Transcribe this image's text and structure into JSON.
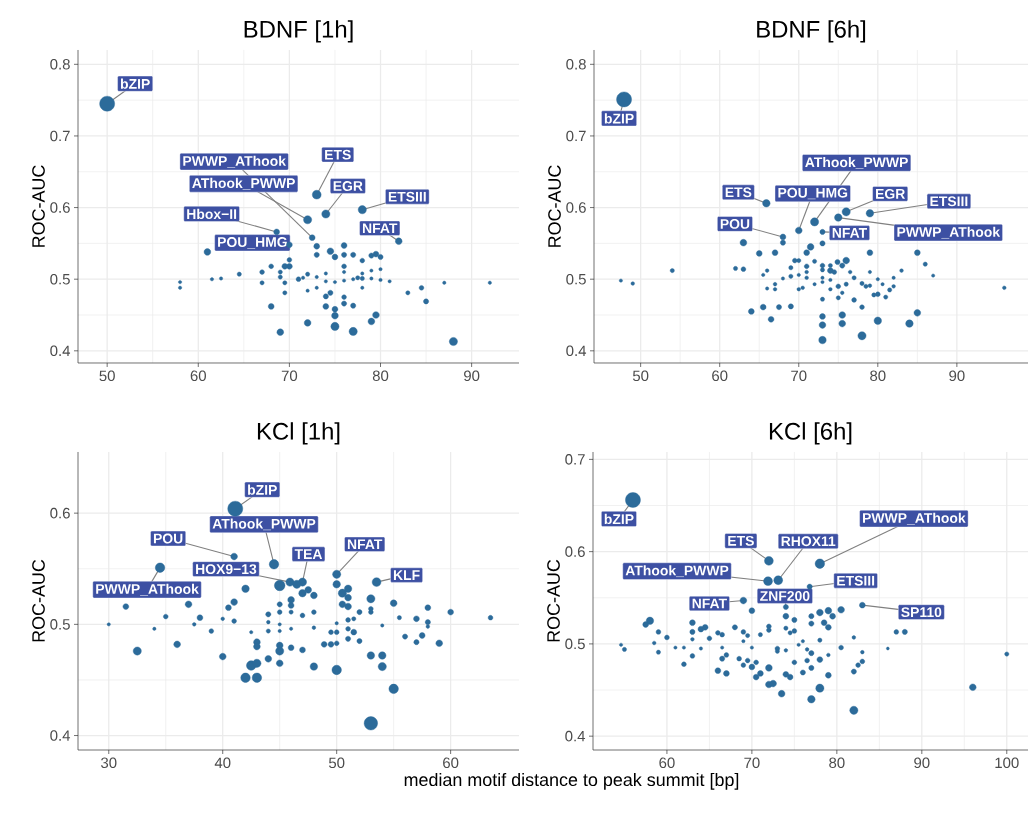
{
  "chart_data": [
    {
      "type": "bubble",
      "title": "BDNF [1h]",
      "ylabel": "ROC-AUC",
      "color": "#2c6b9a",
      "grid": true,
      "xlim": [
        46.8,
        95.2
      ],
      "ylim": [
        0.383,
        0.82
      ],
      "xticks": [
        50,
        60,
        70,
        80,
        90
      ],
      "yticks": [
        0.4,
        0.5,
        0.6,
        0.7,
        0.8
      ],
      "x": [
        50,
        73,
        74,
        78,
        72,
        82,
        68.6,
        72.5,
        70,
        61,
        73,
        76,
        73,
        74.5,
        75,
        76,
        77,
        78,
        79,
        79.5,
        80,
        70,
        70,
        69.5,
        68,
        67,
        69,
        64.5,
        62.5,
        61.5,
        58,
        58,
        67,
        69,
        69.5,
        71,
        71.5,
        72,
        73,
        73,
        74,
        74,
        75,
        76,
        76,
        76,
        77,
        77.5,
        78,
        78,
        78,
        79,
        80,
        80,
        81,
        79,
        69.5,
        72,
        74.5,
        74,
        74,
        75,
        76,
        76,
        77,
        68,
        72,
        69,
        75,
        75,
        77,
        79,
        79.5,
        88,
        83,
        84.5,
        85,
        87,
        92
      ],
      "values": [
        0.745,
        0.618,
        0.591,
        0.597,
        0.583,
        0.553,
        0.566,
        0.558,
        0.548,
        0.538,
        0.546,
        0.547,
        0.534,
        0.539,
        0.531,
        0.534,
        0.534,
        0.526,
        0.533,
        0.535,
        0.531,
        0.527,
        0.518,
        0.518,
        0.518,
        0.51,
        0.51,
        0.507,
        0.501,
        0.5,
        0.496,
        0.488,
        0.495,
        0.503,
        0.495,
        0.5,
        0.502,
        0.507,
        0.503,
        0.488,
        0.508,
        0.497,
        0.496,
        0.518,
        0.51,
        0.498,
        0.5,
        0.502,
        0.508,
        0.501,
        0.488,
        0.512,
        0.514,
        0.499,
        0.497,
        0.501,
        0.481,
        0.484,
        0.481,
        0.476,
        0.462,
        0.458,
        0.475,
        0.466,
        0.463,
        0.462,
        0.439,
        0.426,
        0.449,
        0.434,
        0.427,
        0.441,
        0.45,
        0.413,
        0.481,
        0.488,
        0.469,
        0.495,
        0.495
      ],
      "sizes": [
        1,
        0.35,
        0.3,
        0.3,
        0.3,
        0.2,
        0.15,
        0.15,
        0.15,
        0.2,
        0.15,
        0.15,
        0.12,
        0.2,
        0.15,
        0.12,
        0.12,
        0.1,
        0.12,
        0.15,
        0.12,
        0.1,
        0.15,
        0.15,
        0.1,
        0.1,
        0.08,
        0.08,
        0.05,
        0.05,
        0.05,
        0.05,
        0.08,
        0.08,
        0.08,
        0.1,
        0.05,
        0.08,
        0.05,
        0.05,
        0.05,
        0.05,
        0.05,
        0.1,
        0.05,
        0.05,
        0.05,
        0.08,
        0.05,
        0.08,
        0.05,
        0.05,
        0.05,
        0.05,
        0.05,
        0.05,
        0.08,
        0.05,
        0.12,
        0.12,
        0.15,
        0.15,
        0.1,
        0.12,
        0.12,
        0.15,
        0.2,
        0.2,
        0.2,
        0.3,
        0.3,
        0.2,
        0.2,
        0.3,
        0.08,
        0.1,
        0.12,
        0.05,
        0.05
      ],
      "annotations": [
        {
          "text": "bZIP",
          "x": 50,
          "y": 0.745
        },
        {
          "text": "ETS",
          "x": 73,
          "y": 0.618
        },
        {
          "text": "EGR",
          "x": 74,
          "y": 0.591
        },
        {
          "text": "ETSIII",
          "x": 78,
          "y": 0.597
        },
        {
          "text": "AThook_PWWP",
          "x": 72,
          "y": 0.583
        },
        {
          "text": "NFAT",
          "x": 82,
          "y": 0.553
        },
        {
          "text": "Hbox−II",
          "x": 68.6,
          "y": 0.566
        },
        {
          "text": "PWWP_AThook",
          "x": 72.5,
          "y": 0.558
        },
        {
          "text": "POU_HMG",
          "x": 70,
          "y": 0.548
        }
      ]
    },
    {
      "type": "bubble",
      "title": "BDNF [6h]",
      "ylabel": "ROC-AUC",
      "color": "#2c6b9a",
      "grid": true,
      "xlim": [
        44.1,
        99
      ],
      "ylim": [
        0.383,
        0.82
      ],
      "xticks": [
        50,
        60,
        70,
        80,
        90
      ],
      "yticks": [
        0.4,
        0.5,
        0.6,
        0.7,
        0.8
      ],
      "x": [
        47.9,
        65.9,
        68,
        70,
        72,
        76,
        79,
        73,
        75,
        68,
        63,
        65,
        67,
        62,
        63,
        54,
        47.5,
        49,
        66,
        65.5,
        66,
        67,
        67,
        68,
        69,
        69,
        69.5,
        70,
        70,
        70,
        70.5,
        71,
        71.5,
        71,
        71,
        71,
        72,
        72,
        73,
        73,
        73,
        73,
        73,
        74,
        74,
        74.5,
        74.9,
        75.5,
        76,
        74,
        74,
        75,
        76,
        76.5,
        77,
        75,
        75.5,
        77,
        78,
        78.5,
        79,
        79,
        79,
        79.5,
        80,
        80,
        80.6,
        81,
        81.5,
        82,
        82,
        83,
        85,
        86,
        87,
        96,
        64,
        65.5,
        66.5,
        67.5,
        69,
        73,
        73,
        73,
        73,
        75.5,
        75.5,
        78,
        78,
        80,
        84,
        85
      ],
      "values": [
        0.751,
        0.606,
        0.559,
        0.568,
        0.58,
        0.594,
        0.592,
        0.566,
        0.586,
        0.551,
        0.551,
        0.536,
        0.537,
        0.515,
        0.514,
        0.512,
        0.498,
        0.494,
        0.512,
        0.506,
        0.487,
        0.493,
        0.486,
        0.501,
        0.516,
        0.504,
        0.526,
        0.526,
        0.506,
        0.486,
        0.488,
        0.537,
        0.545,
        0.518,
        0.51,
        0.502,
        0.525,
        0.493,
        0.519,
        0.513,
        0.502,
        0.496,
        0.55,
        0.519,
        0.512,
        0.51,
        0.524,
        0.519,
        0.526,
        0.499,
        0.486,
        0.49,
        0.493,
        0.51,
        0.502,
        0.474,
        0.481,
        0.471,
        0.494,
        0.49,
        0.51,
        0.537,
        0.491,
        0.478,
        0.5,
        0.479,
        0.493,
        0.475,
        0.485,
        0.49,
        0.502,
        0.512,
        0.537,
        0.521,
        0.505,
        0.488,
        0.455,
        0.461,
        0.444,
        0.461,
        0.462,
        0.472,
        0.448,
        0.436,
        0.415,
        0.45,
        0.438,
        0.461,
        0.421,
        0.442,
        0.438,
        0.453
      ],
      "sizes": [
        1,
        0.25,
        0.15,
        0.2,
        0.3,
        0.3,
        0.25,
        0.12,
        0.25,
        0.12,
        0.2,
        0.15,
        0.15,
        0.08,
        0.1,
        0.08,
        0.05,
        0.06,
        0.06,
        0.05,
        0.05,
        0.06,
        0.06,
        0.05,
        0.08,
        0.08,
        0.1,
        0.08,
        0.05,
        0.06,
        0.06,
        0.15,
        0.2,
        0.1,
        0.06,
        0.06,
        0.08,
        0.05,
        0.1,
        0.08,
        0.05,
        0.05,
        0.12,
        0.08,
        0.15,
        0.1,
        0.12,
        0.12,
        0.2,
        0.05,
        0.06,
        0.1,
        0.08,
        0.06,
        0.08,
        0.08,
        0.06,
        0.1,
        0.08,
        0.08,
        0.05,
        0.15,
        0.06,
        0.08,
        0.05,
        0.1,
        0.05,
        0.08,
        0.08,
        0.06,
        0.05,
        0.06,
        0.15,
        0.08,
        0.05,
        0.06,
        0.15,
        0.15,
        0.15,
        0.12,
        0.12,
        0.08,
        0.15,
        0.2,
        0.25,
        0.2,
        0.2,
        0.1,
        0.3,
        0.25,
        0.25,
        0.2
      ],
      "annotations": [
        {
          "text": "bZIP",
          "x": 47.9,
          "y": 0.751
        },
        {
          "text": "ETS",
          "x": 65.9,
          "y": 0.606
        },
        {
          "text": "POU",
          "x": 68,
          "y": 0.559
        },
        {
          "text": "POU_HMG",
          "x": 70,
          "y": 0.568
        },
        {
          "text": "AThook_PWWP",
          "x": 72,
          "y": 0.58
        },
        {
          "text": "EGR",
          "x": 76,
          "y": 0.594
        },
        {
          "text": "ETSIII",
          "x": 79,
          "y": 0.592
        },
        {
          "text": "NFAT",
          "x": 73,
          "y": 0.566
        },
        {
          "text": "PWWP_AThook",
          "x": 75,
          "y": 0.586
        }
      ]
    },
    {
      "type": "bubble",
      "title": "KCl [1h]",
      "ylabel": "ROC-AUC",
      "xlabel": "median motif distance to peak summit [bp]",
      "color": "#2c6b9a",
      "grid": true,
      "xlim": [
        27.3,
        66
      ],
      "ylim": [
        0.387,
        0.655
      ],
      "xticks": [
        30,
        40,
        50,
        60
      ],
      "yticks": [
        0.4,
        0.5,
        0.6
      ],
      "x": [
        41.1,
        44.5,
        41,
        34.5,
        45.9,
        47,
        50,
        53.5,
        45,
        46.5,
        42,
        47,
        48,
        47.5,
        50,
        51,
        50.5,
        51,
        50.5,
        51,
        53,
        53,
        53,
        52,
        55,
        55.5,
        57,
        58,
        58,
        58,
        60,
        63.5,
        56,
        57,
        57.5,
        59,
        54,
        51,
        51.5,
        51,
        51.5,
        51,
        52,
        50,
        49.5,
        50,
        48.9,
        49.5,
        50,
        48,
        48,
        47,
        46,
        46,
        46,
        46,
        45,
        45,
        45,
        45,
        44,
        44,
        44,
        42.5,
        41,
        40.5,
        41,
        40,
        37,
        38,
        37.5,
        39,
        35,
        34,
        31.5,
        30,
        36,
        32.5,
        40,
        42,
        42.5,
        43,
        43,
        43,
        43,
        44,
        45,
        45,
        45,
        46,
        47,
        48,
        50,
        53,
        54,
        54,
        55,
        53
      ],
      "values": [
        0.604,
        0.554,
        0.561,
        0.551,
        0.538,
        0.538,
        0.545,
        0.538,
        0.535,
        0.536,
        0.532,
        0.528,
        0.526,
        0.531,
        0.536,
        0.532,
        0.528,
        0.524,
        0.518,
        0.516,
        0.523,
        0.514,
        0.511,
        0.511,
        0.519,
        0.506,
        0.505,
        0.515,
        0.502,
        0.498,
        0.511,
        0.506,
        0.489,
        0.484,
        0.49,
        0.483,
        0.499,
        0.504,
        0.505,
        0.496,
        0.493,
        0.487,
        0.485,
        0.501,
        0.493,
        0.493,
        0.482,
        0.482,
        0.483,
        0.497,
        0.511,
        0.508,
        0.522,
        0.517,
        0.511,
        0.496,
        0.518,
        0.511,
        0.5,
        0.494,
        0.509,
        0.502,
        0.494,
        0.493,
        0.52,
        0.515,
        0.503,
        0.505,
        0.518,
        0.506,
        0.5,
        0.494,
        0.507,
        0.496,
        0.516,
        0.5,
        0.482,
        0.476,
        0.471,
        0.452,
        0.463,
        0.465,
        0.452,
        0.484,
        0.48,
        0.469,
        0.481,
        0.476,
        0.465,
        0.479,
        0.477,
        0.462,
        0.459,
        0.472,
        0.472,
        0.462,
        0.442,
        0.411
      ],
      "sizes": [
        1,
        0.4,
        0.2,
        0.4,
        0.3,
        0.3,
        0.3,
        0.35,
        0.5,
        0.3,
        0.25,
        0.25,
        0.2,
        0.2,
        0.25,
        0.25,
        0.3,
        0.2,
        0.2,
        0.2,
        0.3,
        0.1,
        0.1,
        0.12,
        0.2,
        0.08,
        0.15,
        0.15,
        0.12,
        0.06,
        0.15,
        0.1,
        0.12,
        0.12,
        0.15,
        0.2,
        0.05,
        0.1,
        0.08,
        0.1,
        0.15,
        0.12,
        0.12,
        0.05,
        0.1,
        0.1,
        0.15,
        0.15,
        0.1,
        0.06,
        0.1,
        0.1,
        0.2,
        0.15,
        0.08,
        0.05,
        0.12,
        0.1,
        0.05,
        0.05,
        0.12,
        0.06,
        0.08,
        0.05,
        0.2,
        0.15,
        0.1,
        0.06,
        0.2,
        0.15,
        0.06,
        0.1,
        0.1,
        0.05,
        0.15,
        0.05,
        0.2,
        0.3,
        0.2,
        0.4,
        0.4,
        0.3,
        0.4,
        0.2,
        0.2,
        0.2,
        0.2,
        0.3,
        0.2,
        0.15,
        0.15,
        0.25,
        0.4,
        0.25,
        0.25,
        0.3,
        0.4,
        0.8
      ],
      "annotations": [
        {
          "text": "bZIP",
          "x": 41.1,
          "y": 0.604
        },
        {
          "text": "AThook_PWWP",
          "x": 44.5,
          "y": 0.554
        },
        {
          "text": "POU",
          "x": 41,
          "y": 0.561
        },
        {
          "text": "PWWP_AThook",
          "x": 34.5,
          "y": 0.551
        },
        {
          "text": "HOX9−13",
          "x": 45.9,
          "y": 0.538
        },
        {
          "text": "TEA",
          "x": 47,
          "y": 0.538
        },
        {
          "text": "NFAT",
          "x": 50,
          "y": 0.545
        },
        {
          "text": "KLF",
          "x": 53.5,
          "y": 0.538
        }
      ]
    },
    {
      "type": "bubble",
      "title": "KCl [6h]",
      "ylabel": "ROC-AUC",
      "color": "#2c6b9a",
      "grid": true,
      "xlim": [
        51.3,
        102.5
      ],
      "ylim": [
        0.385,
        0.708
      ],
      "xticks": [
        60,
        70,
        80,
        90,
        100
      ],
      "yticks": [
        0.4,
        0.5,
        0.6,
        0.7
      ],
      "x": [
        56,
        72,
        78,
        73.1,
        71.9,
        76.8,
        74,
        69,
        83,
        70,
        58,
        57.5,
        59,
        60,
        58.5,
        59,
        54.6,
        55,
        61,
        62,
        62,
        63,
        63,
        63,
        63,
        64,
        64,
        64.5,
        65,
        66,
        66.5,
        66.5,
        66.5,
        67,
        66,
        67,
        68,
        68.5,
        69,
        69.5,
        69,
        70,
        69,
        69.5,
        70,
        70.5,
        71,
        70.5,
        71,
        72,
        72,
        72,
        72,
        72.5,
        73,
        73,
        73.5,
        74,
        74,
        74,
        74,
        74.5,
        74.5,
        75,
        75,
        75,
        76,
        75.5,
        76,
        76.5,
        76.5,
        77,
        77,
        77,
        77,
        77,
        78,
        78,
        78,
        78,
        78.5,
        79,
        79,
        79,
        79,
        79.5,
        80.5,
        80.5,
        82,
        82,
        82.5,
        83,
        83,
        82,
        86,
        87,
        88,
        96,
        100
      ],
      "values": [
        0.656,
        0.59,
        0.587,
        0.569,
        0.568,
        0.562,
        0.54,
        0.547,
        0.542,
        0.536,
        0.525,
        0.521,
        0.513,
        0.507,
        0.501,
        0.491,
        0.499,
        0.494,
        0.496,
        0.496,
        0.478,
        0.523,
        0.513,
        0.505,
        0.487,
        0.495,
        0.516,
        0.518,
        0.506,
        0.512,
        0.51,
        0.496,
        0.484,
        0.488,
        0.471,
        0.468,
        0.518,
        0.484,
        0.513,
        0.509,
        0.503,
        0.496,
        0.477,
        0.482,
        0.475,
        0.48,
        0.51,
        0.464,
        0.468,
        0.519,
        0.515,
        0.474,
        0.456,
        0.457,
        0.495,
        0.492,
        0.446,
        0.53,
        0.517,
        0.493,
        0.467,
        0.464,
        0.512,
        0.526,
        0.514,
        0.48,
        0.503,
        0.499,
        0.469,
        0.494,
        0.482,
        0.53,
        0.522,
        0.49,
        0.474,
        0.44,
        0.534,
        0.504,
        0.483,
        0.452,
        0.523,
        0.536,
        0.518,
        0.488,
        0.466,
        0.53,
        0.537,
        0.496,
        0.507,
        0.47,
        0.477,
        0.481,
        0.491,
        0.428,
        0.495,
        0.513,
        0.513,
        0.453,
        0.489
      ],
      "sizes": [
        1,
        0.35,
        0.4,
        0.35,
        0.35,
        0.12,
        0.12,
        0.2,
        0.15,
        0.15,
        0.25,
        0.15,
        0.1,
        0.1,
        0.06,
        0.08,
        0.05,
        0.08,
        0.05,
        0.05,
        0.1,
        0.15,
        0.12,
        0.06,
        0.1,
        0.05,
        0.15,
        0.15,
        0.1,
        0.1,
        0.1,
        0.05,
        0.12,
        0.1,
        0.15,
        0.15,
        0.12,
        0.1,
        0.1,
        0.08,
        0.05,
        0.05,
        0.1,
        0.1,
        0.15,
        0.1,
        0.08,
        0.15,
        0.15,
        0.1,
        0.1,
        0.2,
        0.2,
        0.2,
        0.1,
        0.08,
        0.2,
        0.15,
        0.08,
        0.06,
        0.15,
        0.15,
        0.08,
        0.12,
        0.1,
        0.1,
        0.05,
        0.05,
        0.12,
        0.06,
        0.1,
        0.12,
        0.12,
        0.12,
        0.12,
        0.25,
        0.2,
        0.08,
        0.15,
        0.3,
        0.15,
        0.2,
        0.15,
        0.06,
        0.15,
        0.15,
        0.2,
        0.1,
        0.06,
        0.12,
        0.1,
        0.1,
        0.06,
        0.3,
        0.04,
        0.1,
        0.12,
        0.2,
        0.08
      ],
      "annotations": [
        {
          "text": "bZIP",
          "x": 56,
          "y": 0.656
        },
        {
          "text": "ETS",
          "x": 72,
          "y": 0.59
        },
        {
          "text": "RHOX11",
          "x": 73.1,
          "y": 0.569
        },
        {
          "text": "PWWP_AThook",
          "x": 78,
          "y": 0.587
        },
        {
          "text": "AThook_PWWP",
          "x": 71.9,
          "y": 0.568
        },
        {
          "text": "ETSIII",
          "x": 76.8,
          "y": 0.562
        },
        {
          "text": "ZNF200",
          "x": 74,
          "y": 0.54
        },
        {
          "text": "NFAT",
          "x": 69,
          "y": 0.547
        },
        {
          "text": "SP110",
          "x": 83,
          "y": 0.542
        }
      ]
    }
  ]
}
